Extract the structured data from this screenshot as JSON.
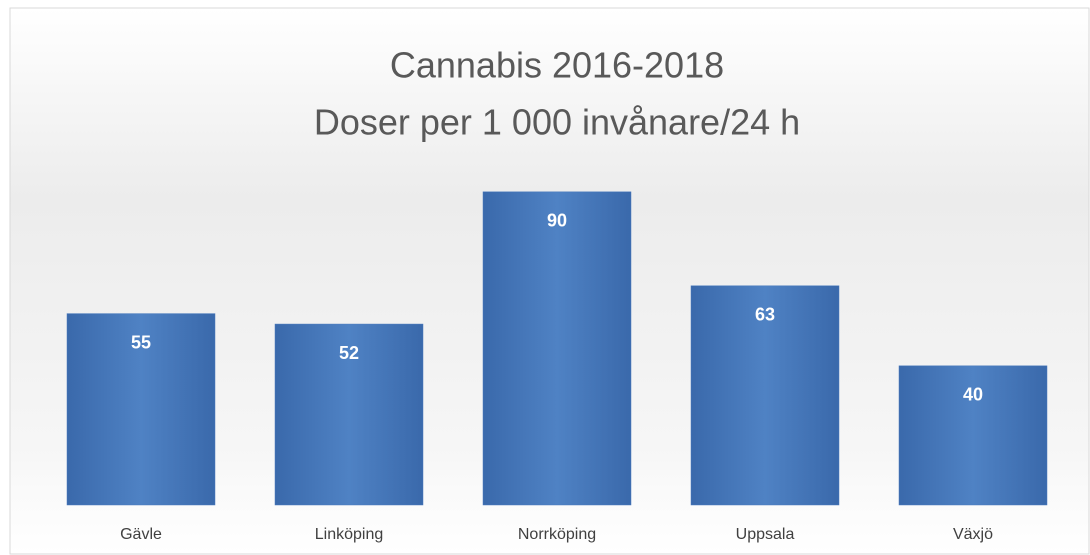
{
  "chart_data": {
    "type": "bar",
    "title": "Cannabis 2016-2018",
    "subtitle": "Doser per 1 000 invånare/24 h",
    "categories": [
      "Gävle",
      "Linköping",
      "Norrköping",
      "Uppsala",
      "Växjö"
    ],
    "values": [
      55,
      52,
      90,
      63,
      40
    ],
    "color": "#4a7bbd"
  }
}
